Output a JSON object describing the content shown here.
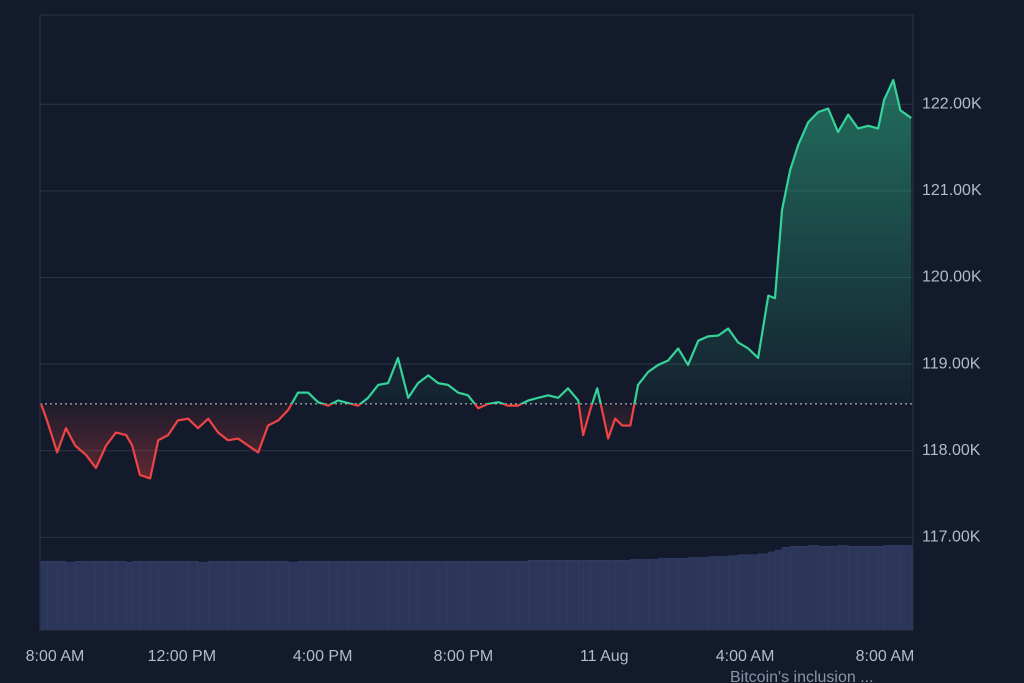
{
  "chart_data": {
    "type": "line",
    "x": [
      0,
      0.17,
      0.46,
      0.71,
      0.97,
      1.28,
      1.56,
      1.85,
      2.13,
      2.42,
      2.59,
      2.81,
      3.1,
      3.33,
      3.61,
      3.89,
      4.18,
      4.46,
      4.75,
      5.03,
      5.31,
      5.6,
      5.88,
      6.17,
      6.45,
      6.74,
      7.02,
      7.3,
      7.59,
      7.87,
      8.16,
      8.44,
      8.72,
      9.01,
      9.29,
      9.58,
      9.86,
      10.14,
      10.43,
      10.71,
      11.0,
      11.28,
      11.56,
      11.85,
      12.13,
      12.42,
      12.7,
      12.99,
      13.27,
      13.55,
      13.84,
      14.12,
      14.41,
      14.69,
      14.97,
      15.26,
      15.4,
      15.6,
      15.8,
      15.97,
      16.11,
      16.31,
      16.51,
      16.74,
      16.96,
      17.25,
      17.53,
      17.81,
      18.1,
      18.38,
      18.67,
      18.95,
      19.24,
      19.52,
      19.8,
      20.09,
      20.37,
      20.66,
      20.85,
      21.05,
      21.28,
      21.51,
      21.79,
      22.08,
      22.36,
      22.64,
      22.93,
      23.21,
      23.5,
      23.78,
      23.95,
      24.21,
      24.41,
      24.72
    ],
    "values": [
      118540,
      118350,
      117980,
      118260,
      118060,
      117950,
      117800,
      118060,
      118210,
      118180,
      118060,
      117720,
      117680,
      118120,
      118180,
      118350,
      118370,
      118260,
      118370,
      118210,
      118120,
      118140,
      118060,
      117980,
      118290,
      118350,
      118470,
      118670,
      118670,
      118560,
      118520,
      118580,
      118550,
      118520,
      118610,
      118760,
      118780,
      119070,
      118610,
      118780,
      118870,
      118780,
      118760,
      118670,
      118640,
      118490,
      118540,
      118560,
      118520,
      118520,
      118580,
      118610,
      118640,
      118610,
      118720,
      118580,
      118180,
      118470,
      118720,
      118410,
      118140,
      118370,
      118290,
      118290,
      118760,
      118910,
      118990,
      119040,
      119180,
      118990,
      119270,
      119320,
      119330,
      119410,
      119250,
      119180,
      119070,
      119790,
      119760,
      120780,
      121240,
      121530,
      121790,
      121910,
      121950,
      121680,
      121880,
      121720,
      121750,
      121720,
      122050,
      122280,
      121930,
      121840
    ],
    "volume": [
      74,
      74,
      74,
      73,
      74,
      74,
      74,
      74,
      74,
      73,
      74,
      74,
      74,
      74,
      74,
      74,
      74,
      73,
      74,
      74,
      74,
      74,
      74,
      74,
      74,
      74,
      73,
      74,
      74,
      74,
      74,
      74,
      74,
      74,
      74,
      74,
      74,
      74,
      74,
      74,
      74,
      74,
      74,
      74,
      74,
      74,
      74,
      74,
      74,
      74,
      75,
      75,
      75,
      75,
      75,
      75,
      75,
      75,
      75,
      75,
      75,
      75,
      75,
      76,
      76,
      76,
      77,
      77,
      77,
      78,
      78,
      79,
      79,
      80,
      81,
      81,
      82,
      84,
      86,
      89,
      90,
      90,
      91,
      90,
      90,
      91,
      90,
      90,
      90,
      90,
      91,
      91,
      91,
      90
    ],
    "vlim": [
      0,
      100
    ],
    "baseline": 118540,
    "up_color": "#34d399",
    "down_color": "#ef4444",
    "volume_color": "#2b3658",
    "xlim": [
      0,
      24.77
    ],
    "ylim": [
      115930,
      123030
    ],
    "xticks": [
      {
        "value": 0,
        "label": "8:00 AM"
      },
      {
        "value": 4,
        "label": "12:00 PM"
      },
      {
        "value": 8,
        "label": "4:00 PM"
      },
      {
        "value": 12,
        "label": "8:00 PM"
      },
      {
        "value": 16,
        "label": "11 Aug"
      },
      {
        "value": 20,
        "label": "4:00 AM"
      },
      {
        "value": 24,
        "label": "8:00 AM"
      }
    ],
    "yticks": [
      {
        "value": 117000,
        "label": "117.00K"
      },
      {
        "value": 118000,
        "label": "118.00K"
      },
      {
        "value": 119000,
        "label": "119.00K"
      },
      {
        "value": 120000,
        "label": "120.00K"
      },
      {
        "value": 121000,
        "label": "121.00K"
      },
      {
        "value": 122000,
        "label": "122.00K"
      }
    ],
    "grid": true,
    "annotation": "Bitcoin's inclusion ..."
  }
}
